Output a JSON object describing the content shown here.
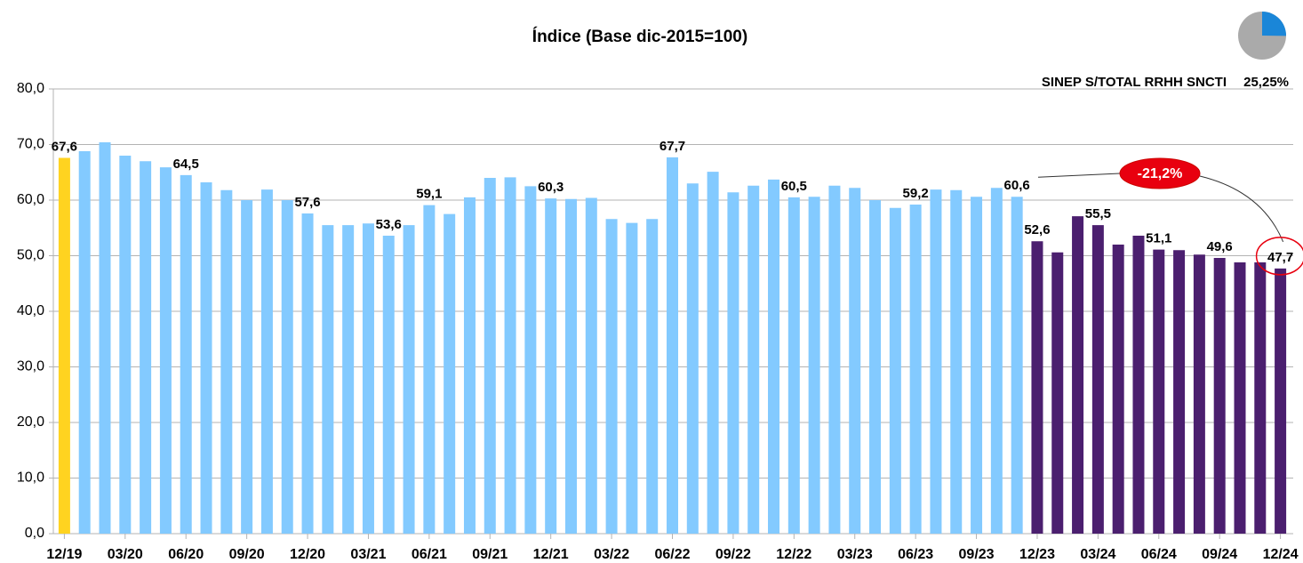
{
  "chart_data": {
    "type": "bar",
    "title": "Índice (Base dic-2015=100)",
    "categories": [
      "12/19",
      null,
      null,
      "03/20",
      null,
      null,
      "06/20",
      null,
      null,
      "09/20",
      null,
      null,
      "12/20",
      null,
      null,
      "03/21",
      null,
      null,
      "06/21",
      null,
      null,
      "09/21",
      null,
      null,
      "12/21",
      null,
      null,
      "03/22",
      null,
      null,
      "06/22",
      null,
      null,
      "09/22",
      null,
      null,
      "12/22",
      null,
      null,
      "03/23",
      null,
      null,
      "06/23",
      null,
      null,
      "09/23",
      null,
      null,
      "12/23",
      null,
      null,
      "03/24",
      null,
      null,
      "06/24",
      null,
      null,
      "09/24",
      null,
      null,
      "12/24"
    ],
    "values": [
      67.6,
      68.8,
      70.4,
      68.0,
      67.0,
      65.9,
      64.5,
      63.2,
      61.8,
      60.0,
      61.9,
      60.0,
      57.6,
      55.5,
      55.5,
      55.8,
      53.6,
      55.5,
      59.1,
      57.5,
      60.5,
      64.0,
      64.1,
      62.5,
      60.3,
      60.2,
      60.4,
      56.6,
      55.9,
      56.6,
      67.7,
      63.0,
      65.1,
      61.4,
      62.6,
      63.7,
      60.5,
      60.6,
      62.6,
      62.2,
      60.0,
      58.6,
      59.2,
      61.9,
      61.8,
      60.6,
      62.2,
      60.6,
      52.6,
      50.6,
      57.1,
      55.5,
      52.0,
      53.6,
      51.1,
      51.0,
      50.2,
      49.6,
      48.8,
      48.8,
      47.7
    ],
    "value_labels": [
      "67,6",
      null,
      null,
      null,
      null,
      null,
      "64,5",
      null,
      null,
      null,
      null,
      null,
      "57,6",
      null,
      null,
      null,
      "53,6",
      null,
      "59,1",
      null,
      null,
      null,
      null,
      null,
      "60,3",
      null,
      null,
      null,
      null,
      null,
      "67,7",
      null,
      null,
      null,
      null,
      null,
      "60,5",
      null,
      null,
      null,
      null,
      null,
      "59,2",
      null,
      null,
      null,
      null,
      "60,6",
      "52,6",
      null,
      null,
      "55,5",
      null,
      null,
      "51,1",
      null,
      null,
      "49,6",
      null,
      null,
      "47,7"
    ],
    "colors": [
      "#ffd320",
      "#83caff",
      "#83caff",
      "#83caff",
      "#83caff",
      "#83caff",
      "#83caff",
      "#83caff",
      "#83caff",
      "#83caff",
      "#83caff",
      "#83caff",
      "#83caff",
      "#83caff",
      "#83caff",
      "#83caff",
      "#83caff",
      "#83caff",
      "#83caff",
      "#83caff",
      "#83caff",
      "#83caff",
      "#83caff",
      "#83caff",
      "#83caff",
      "#83caff",
      "#83caff",
      "#83caff",
      "#83caff",
      "#83caff",
      "#83caff",
      "#83caff",
      "#83caff",
      "#83caff",
      "#83caff",
      "#83caff",
      "#83caff",
      "#83caff",
      "#83caff",
      "#83caff",
      "#83caff",
      "#83caff",
      "#83caff",
      "#83caff",
      "#83caff",
      "#83caff",
      "#83caff",
      "#83caff",
      "#4b1f6f",
      "#4b1f6f",
      "#4b1f6f",
      "#4b1f6f",
      "#4b1f6f",
      "#4b1f6f",
      "#4b1f6f",
      "#4b1f6f",
      "#4b1f6f",
      "#4b1f6f",
      "#4b1f6f",
      "#4b1f6f",
      "#4b1f6f"
    ],
    "ylim": [
      0,
      80
    ],
    "yticks": [
      {
        "value": 0,
        "label": "0,0"
      },
      {
        "value": 10,
        "label": "10,0"
      },
      {
        "value": 20,
        "label": "20,0"
      },
      {
        "value": 30,
        "label": "30,0"
      },
      {
        "value": 40,
        "label": "40,0"
      },
      {
        "value": 50,
        "label": "50,0"
      },
      {
        "value": 60,
        "label": "60,0"
      },
      {
        "value": 70,
        "label": "70,0"
      },
      {
        "value": 80,
        "label": "80,0"
      }
    ],
    "grid": true,
    "share": {
      "label": "SINEP S/TOTAL RRHH SNCTI",
      "value": 25.25,
      "value_label": "25,25%"
    },
    "annotation": {
      "value": -21.2,
      "label": "-21,2%"
    }
  }
}
